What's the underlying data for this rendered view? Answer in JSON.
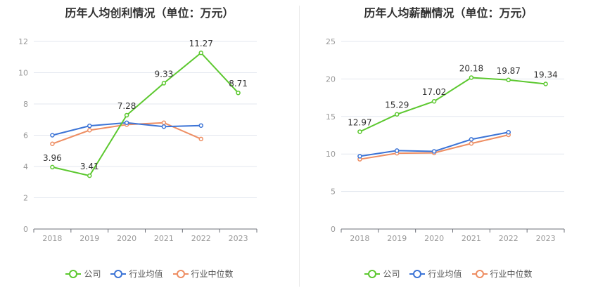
{
  "colors": {
    "company": "#5cc82f",
    "industry_avg": "#3c74d6",
    "industry_median": "#ee8e63",
    "axis": "#999999",
    "grid": "#e3e7ef",
    "label": "#333333"
  },
  "chart_data": [
    {
      "type": "line",
      "title": "历年人均创利情况（单位：万元）",
      "categories": [
        "2018",
        "2019",
        "2020",
        "2021",
        "2022",
        "2023"
      ],
      "ylim": [
        0,
        12
      ],
      "yticks": [
        0,
        2,
        4,
        6,
        8,
        10,
        12
      ],
      "grid": true,
      "legend_placement": "bottom",
      "series": [
        {
          "name": "公司",
          "values": [
            3.96,
            3.41,
            7.28,
            9.33,
            11.27,
            8.71
          ],
          "labels": true
        },
        {
          "name": "行业均值",
          "values": [
            6.0,
            6.6,
            6.8,
            6.55,
            6.62,
            null
          ],
          "labels": false
        },
        {
          "name": "行业中位数",
          "values": [
            5.45,
            6.32,
            6.68,
            6.8,
            5.76,
            null
          ],
          "labels": false
        }
      ]
    },
    {
      "type": "line",
      "title": "历年人均薪酬情况（单位：万元）",
      "categories": [
        "2018",
        "2019",
        "2020",
        "2021",
        "2022",
        "2023"
      ],
      "ylim": [
        0,
        25
      ],
      "yticks": [
        0,
        5,
        10,
        15,
        20,
        25
      ],
      "grid": true,
      "legend_placement": "bottom",
      "series": [
        {
          "name": "公司",
          "values": [
            12.97,
            15.29,
            17.02,
            20.18,
            19.87,
            19.34
          ],
          "labels": true
        },
        {
          "name": "行业均值",
          "values": [
            9.7,
            10.45,
            10.35,
            11.95,
            12.9,
            null
          ],
          "labels": false
        },
        {
          "name": "行业中位数",
          "values": [
            9.3,
            10.1,
            10.15,
            11.4,
            12.55,
            null
          ],
          "labels": false
        }
      ]
    }
  ]
}
